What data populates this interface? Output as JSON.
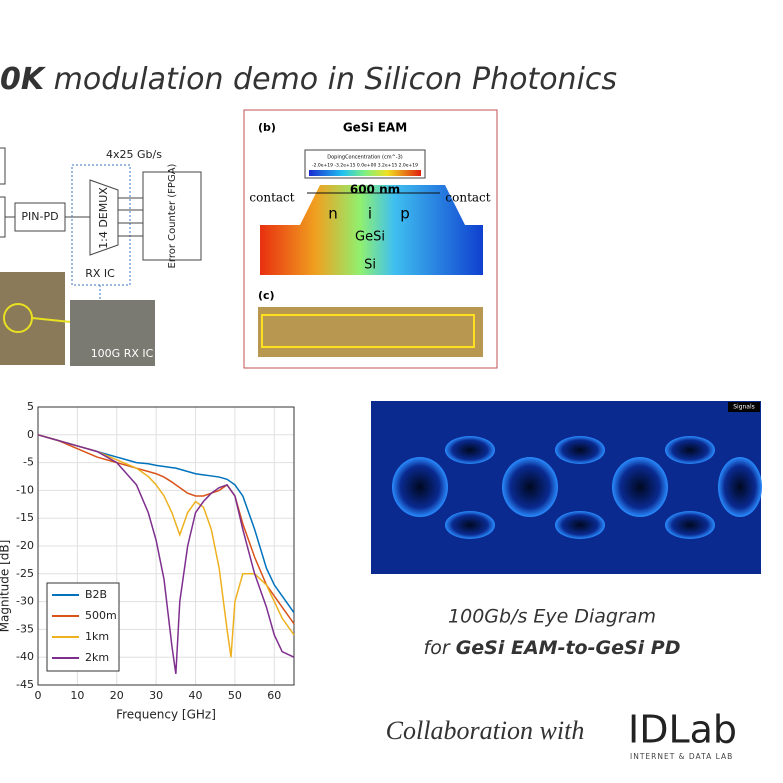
{
  "title_bold": "0K",
  "title_rest": "modulation demo in Silicon Photonics",
  "diagram": {
    "rate": "4x25 Gb/s",
    "pd": "PIN-PD",
    "demux": "1:4 DEMUX",
    "counter": "Error Counter (FPGA)",
    "rx_ic": "RX IC",
    "photo_label": "100G RX IC"
  },
  "eam": {
    "panel_b": "(b)",
    "title": "GeSi EAM",
    "colorbar_title": "DopingConcentration (cm^-3)",
    "colorbar_ticks": "-2.0e+19 -3.2e+15 0.0e+00 3.2e+15 2.0e+19",
    "width": "600 nm",
    "contact_left": "contact",
    "contact_right": "contact",
    "n": "n",
    "i": "i",
    "p": "p",
    "gesi": "GeSi",
    "si": "Si",
    "panel_c": "(c)"
  },
  "chart_data": {
    "type": "line",
    "xlabel": "Frequency [GHz]",
    "ylabel": "Magnitude [dB]",
    "x": [
      0,
      5,
      10,
      15,
      20,
      25,
      28,
      30,
      32,
      34,
      35,
      36,
      38,
      40,
      42,
      44,
      46,
      48,
      49,
      50,
      52,
      55,
      58,
      60,
      62,
      65
    ],
    "series": [
      {
        "name": "B2B",
        "color": "#0072bd",
        "values": [
          0,
          -1,
          -2,
          -3,
          -4,
          -5,
          -5.2,
          -5.5,
          -5.7,
          -5.9,
          -6,
          -6.2,
          -6.6,
          -7,
          -7.2,
          -7.4,
          -7.6,
          -8,
          -8.5,
          -9,
          -11,
          -17,
          -24,
          -27,
          -29,
          -32
        ]
      },
      {
        "name": "500m",
        "color": "#d95319",
        "values": [
          0,
          -1,
          -2.5,
          -4,
          -5,
          -6,
          -6.6,
          -7,
          -7.6,
          -8.5,
          -9,
          -9.5,
          -10.5,
          -11,
          -11,
          -10.5,
          -10,
          -9,
          -10,
          -11,
          -16,
          -22,
          -27,
          -29,
          -31,
          -34
        ]
      },
      {
        "name": "1km",
        "color": "#edb120",
        "values": [
          0,
          -1,
          -2,
          -3,
          -4.5,
          -6,
          -7.5,
          -9,
          -11,
          -14,
          -16,
          -18,
          -14,
          -12,
          -13,
          -17,
          -24,
          -35,
          -40,
          -30,
          -25,
          -25,
          -27,
          -30,
          -33,
          -36
        ]
      },
      {
        "name": "2km",
        "color": "#7e2f8e",
        "values": [
          0,
          -1,
          -2,
          -3,
          -5,
          -9,
          -14,
          -19,
          -26,
          -38,
          -43,
          -30,
          -20,
          -14,
          -12,
          -10.5,
          -9.5,
          -9,
          -10,
          -11,
          -17,
          -25,
          -31,
          -36,
          -39,
          -40
        ]
      }
    ],
    "xlim": [
      0,
      65
    ],
    "ylim": [
      -45,
      5
    ],
    "xticks": [
      0,
      10,
      20,
      30,
      40,
      50,
      60
    ],
    "yticks": [
      5,
      0,
      -5,
      -10,
      -15,
      -20,
      -25,
      -30,
      -35,
      -40,
      -45
    ],
    "grid": true
  },
  "eye": {
    "legend": "Signals",
    "caption_1": "100Gb/s Eye Diagram",
    "caption_2_plain": "for",
    "caption_2_bold": "GeSi EAM-to-GeSi PD"
  },
  "footer": {
    "collab": "Collaboration with",
    "logo": "IDLab",
    "logo_sub": "INTERNET & DATA LAB"
  }
}
